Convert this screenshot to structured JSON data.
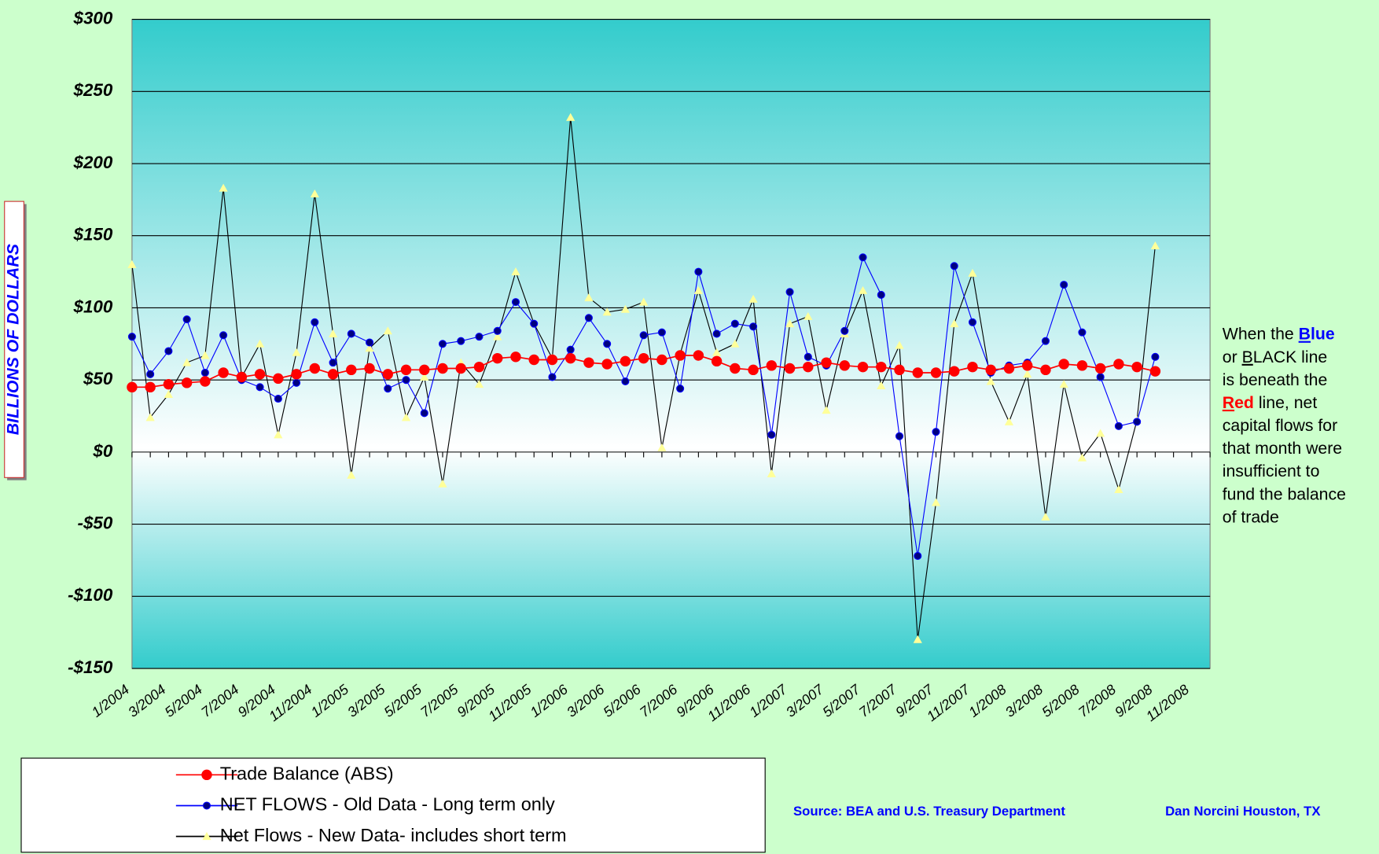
{
  "chart_data": {
    "type": "line",
    "y_axis_label": "BILLIONS OF DOLLARS",
    "categories": [
      "1/2004",
      null,
      "3/2004",
      null,
      "5/2004",
      null,
      "7/2004",
      null,
      "9/2004",
      null,
      "11/2004",
      null,
      "1/2005",
      null,
      "3/2005",
      null,
      "5/2005",
      null,
      "7/2005",
      null,
      "9/2005",
      null,
      "11/2005",
      null,
      "1/2006",
      null,
      "3/2006",
      null,
      "5/2006",
      null,
      "7/2006",
      null,
      "9/2006",
      null,
      "11/2006",
      null,
      "1/2007",
      null,
      "3/2007",
      null,
      "5/2007",
      null,
      "7/2007",
      null,
      "9/2007",
      null,
      "11/2007",
      null,
      "1/2008",
      null,
      "3/2008",
      null,
      "5/2008",
      null,
      "7/2008",
      null,
      "9/2008",
      null,
      "11/2008",
      null
    ],
    "series": [
      {
        "name": "Trade Balance (ABS)",
        "color": "#ff0000",
        "marker": "circle",
        "values": [
          45,
          45,
          47,
          48,
          49,
          55,
          52,
          54,
          51,
          54,
          58,
          54,
          57,
          58,
          54,
          57,
          57,
          58,
          58,
          59,
          65,
          66,
          64,
          64,
          65,
          62,
          61,
          63,
          65,
          64,
          67,
          67,
          63,
          58,
          57,
          60,
          58,
          59,
          62,
          60,
          59,
          59,
          57,
          55,
          55,
          56,
          59,
          57,
          58,
          60,
          57,
          61,
          60,
          58,
          61,
          59,
          56,
          null,
          null,
          null
        ]
      },
      {
        "name": "NET FLOWS - Old Data - Long term only",
        "color": "#0000ff",
        "marker": "dot",
        "values": [
          80,
          54,
          70,
          92,
          55,
          81,
          50,
          45,
          37,
          48,
          90,
          62,
          82,
          76,
          44,
          50,
          27,
          75,
          77,
          80,
          84,
          104,
          89,
          52,
          71,
          93,
          75,
          49,
          81,
          83,
          44,
          125,
          82,
          89,
          87,
          12,
          111,
          66,
          60,
          84,
          135,
          109,
          11,
          -72,
          14,
          129,
          90,
          55,
          60,
          62,
          77,
          116,
          83,
          52,
          18,
          21,
          66,
          null,
          null,
          null
        ]
      },
      {
        "name": "Net Flows - New Data- includes short term",
        "color": "#000000",
        "marker": "triangle",
        "values": [
          130,
          24,
          40,
          62,
          67,
          183,
          52,
          75,
          12,
          69,
          179,
          82,
          -16,
          72,
          84,
          24,
          52,
          -22,
          62,
          47,
          80,
          125,
          89,
          65,
          232,
          107,
          97,
          99,
          104,
          3,
          68,
          112,
          69,
          75,
          106,
          -15,
          89,
          94,
          29,
          82,
          112,
          46,
          74,
          -130,
          -35,
          89,
          124,
          49,
          21,
          54,
          -45,
          47,
          -4,
          13,
          -26,
          22,
          143,
          null,
          null,
          null
        ]
      }
    ],
    "ylim": [
      -150,
      300
    ],
    "yticks": [
      {
        "value": -150,
        "label": "-$150"
      },
      {
        "value": -100,
        "label": "-$100"
      },
      {
        "value": -50,
        "label": "-$50"
      },
      {
        "value": 0,
        "label": "$0"
      },
      {
        "value": 50,
        "label": "$50"
      },
      {
        "value": 100,
        "label": "$100"
      },
      {
        "value": 150,
        "label": "$150"
      },
      {
        "value": 200,
        "label": "$200"
      },
      {
        "value": 250,
        "label": "$250"
      },
      {
        "value": 300,
        "label": "$300"
      }
    ],
    "grid": true,
    "annotation": [
      [
        "When the ",
        "B",
        "lue"
      ],
      [
        "or ",
        "B",
        "LACK line"
      ],
      [
        "is beneath the"
      ],
      [
        "R",
        "ed",
        " line, net"
      ],
      [
        "capital flows for"
      ],
      [
        "that month were"
      ],
      [
        "insufficient to"
      ],
      [
        "fund the balance"
      ],
      [
        "of trade"
      ]
    ],
    "source": "Source:  BEA and U.S. Treasury Department",
    "author": "Dan Norcini  Houston, TX"
  }
}
